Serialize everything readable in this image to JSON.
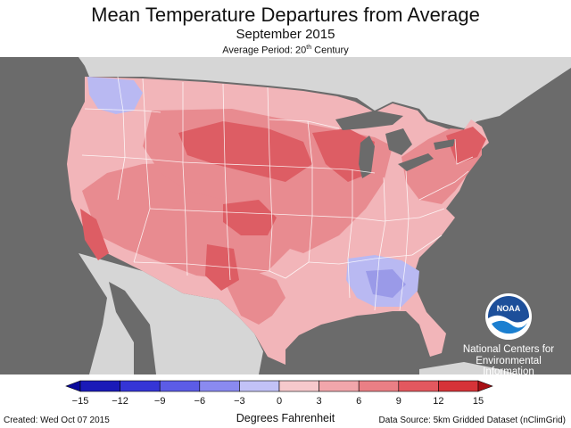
{
  "header": {
    "title": "Mean Temperature Departures from Average",
    "subtitle": "September 2015",
    "period_prefix": "Average Period: 20",
    "period_sup": "th",
    "period_suffix": " Century"
  },
  "legend": {
    "units_label": "Degrees Fahrenheit",
    "ticks": [
      "−15",
      "−12",
      "−9",
      "−6",
      "−3",
      "0",
      "3",
      "6",
      "9",
      "12",
      "15"
    ],
    "colors": [
      "#1a1ab8",
      "#3535d6",
      "#5c5ce6",
      "#8a8af0",
      "#c2c2f7",
      "#f6c9cc",
      "#f1a6ab",
      "#ea7f85",
      "#e3585f",
      "#d63338",
      "#c41c22"
    ],
    "arrow_colors": {
      "low": "#0a0a9c",
      "high": "#a80f14"
    }
  },
  "logo": {
    "icon": "noaa-emblem",
    "text": "NOAA",
    "org_lines": [
      "National Centers for",
      "Environmental",
      "Information"
    ]
  },
  "footer": {
    "created": "Created: Wed Oct 07 2015",
    "source": "Data Source: 5km Gridded Dataset (nClimGrid)"
  },
  "colors": {
    "ocean": "#6b6b6b",
    "land_other": "#d6d6d6",
    "lakes": "#6b6b6b",
    "state_lines": "#ffffff",
    "light_warm": "#f2b5b9",
    "mid_warm": "#e88b90",
    "hot": "#dd5d64",
    "cool": "#b9b9f2",
    "cool_dark": "#9a9ae8"
  }
}
